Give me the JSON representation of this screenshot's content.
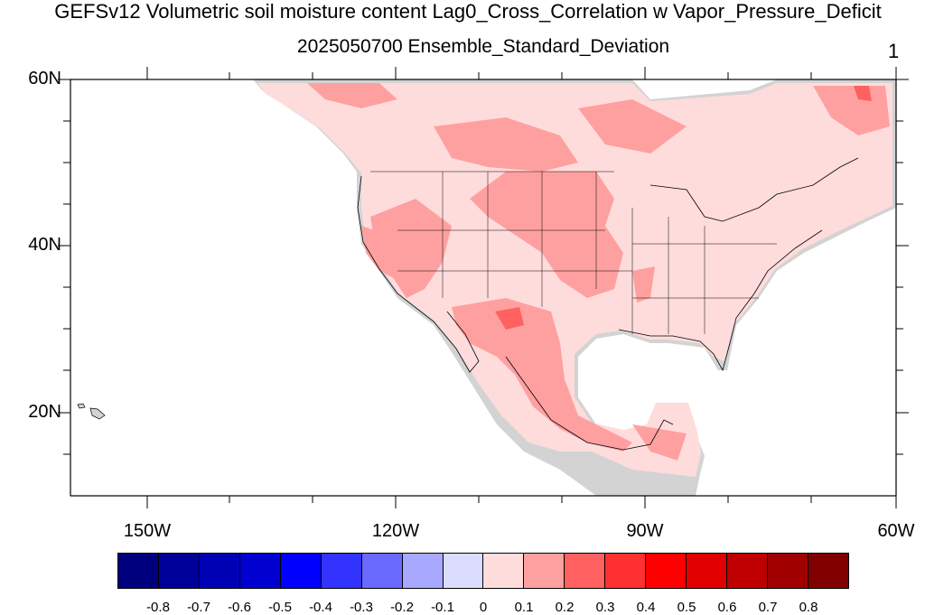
{
  "title": "GEFSv12 Volumetric soil moisture content Lag0_Cross_Correlation w Vapor_Pressure_Deficit",
  "subtitle": "2025050700 Ensemble_Standard_Deviation",
  "panel_number": "1",
  "lat_labels": [
    "60N",
    "40N",
    "20N"
  ],
  "lon_labels": [
    "150W",
    "120W",
    "90W",
    "60W"
  ],
  "colorbar": {
    "labels": [
      "-0.8",
      "-0.7",
      "-0.6",
      "-0.5",
      "-0.4",
      "-0.3",
      "-0.2",
      "-0.1",
      "0",
      "0.1",
      "0.2",
      "0.3",
      "0.4",
      "0.5",
      "0.6",
      "0.7",
      "0.8"
    ],
    "colors": [
      "#00007f",
      "#00009a",
      "#0000b5",
      "#0000d0",
      "#0000ff",
      "#3333ff",
      "#6a6aff",
      "#a8a8ff",
      "#dcdcff",
      "#ffdcdc",
      "#ffa0a0",
      "#ff6060",
      "#ff3030",
      "#ff0000",
      "#e00000",
      "#c00000",
      "#a00000",
      "#800000"
    ]
  },
  "map_colors": {
    "land_missing": "#d3d3d3",
    "class_0_01": "#ffdcdc",
    "class_01_02": "#ffa0a0",
    "class_02_03": "#ff6060",
    "coastline": "#000000"
  }
}
